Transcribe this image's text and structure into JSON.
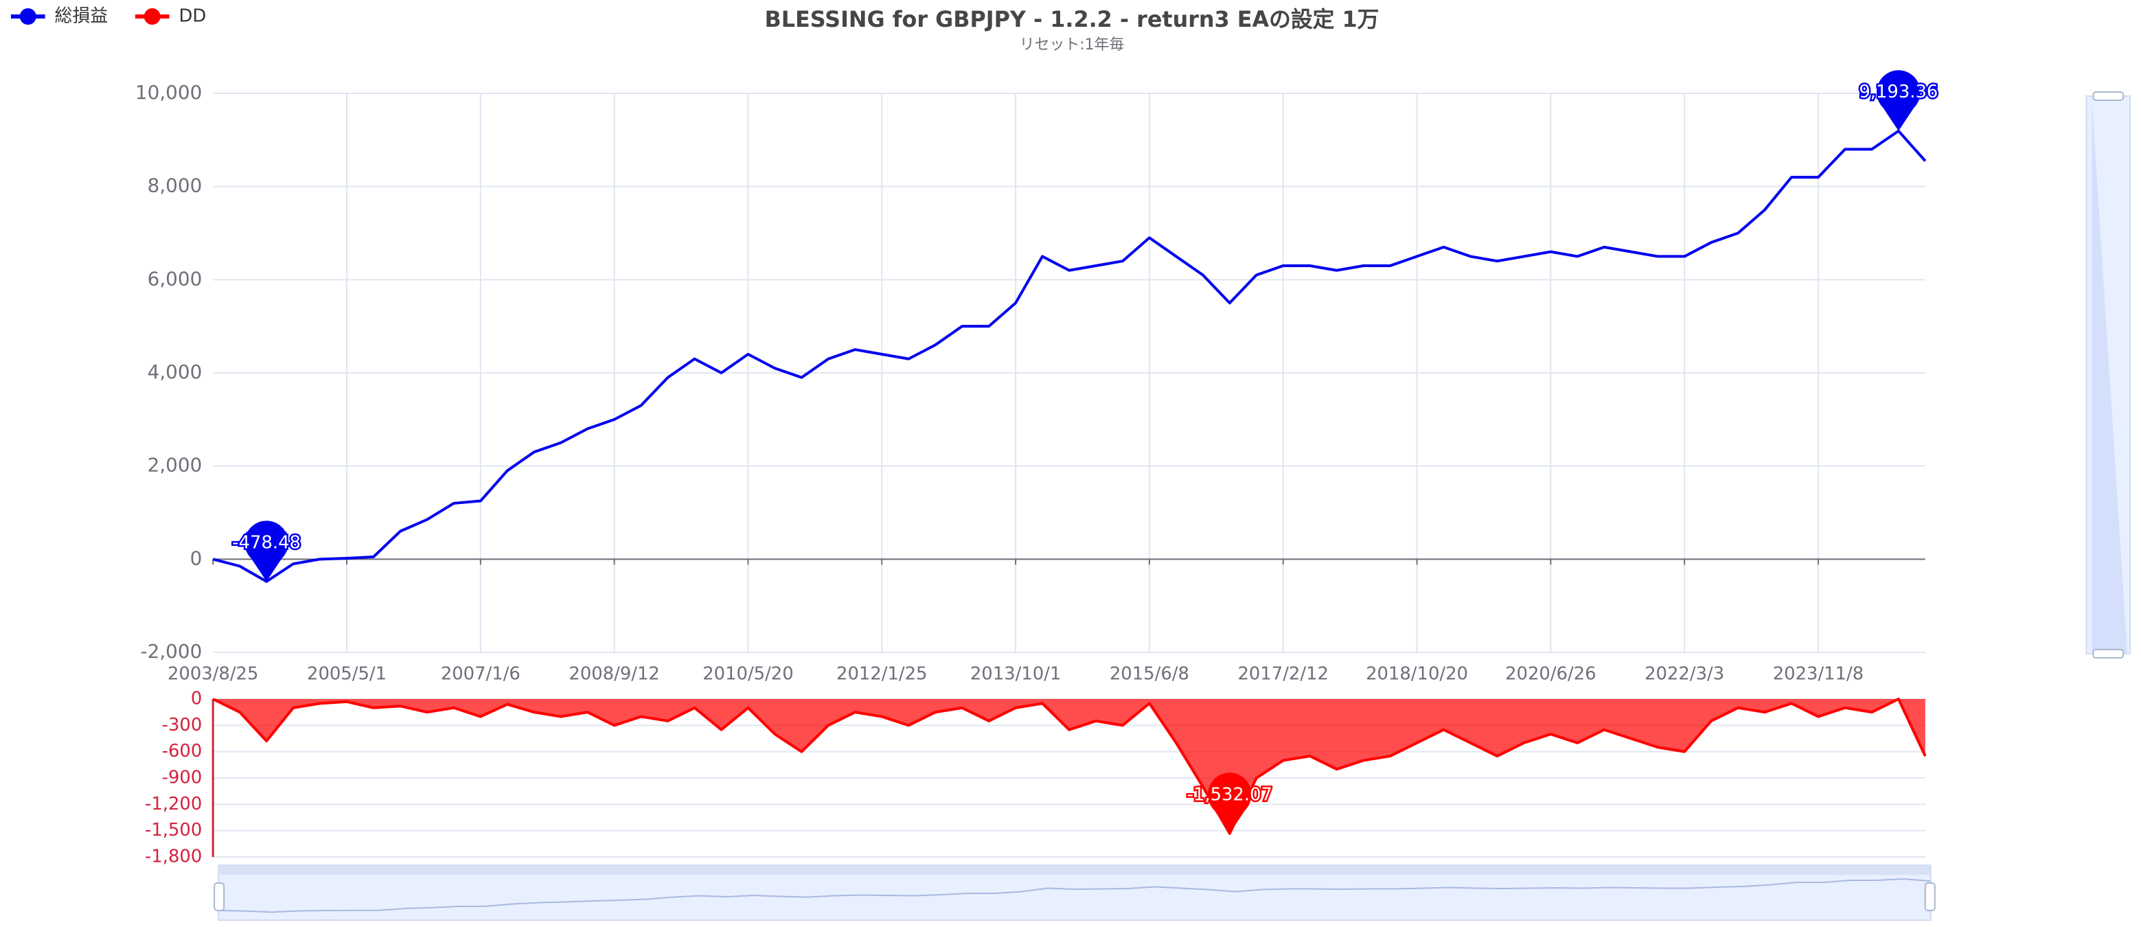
{
  "chart_data": [
    {
      "type": "line",
      "title": "BLESSING for GBPJPY - 1.2.2 - return3 EAの設定 1万",
      "subtitle": "リセット:1年毎",
      "categories": [
        "2003/8/25",
        null,
        null,
        null,
        null,
        "2005/5/1",
        null,
        null,
        null,
        null,
        "2007/1/6",
        null,
        null,
        null,
        null,
        "2008/9/12",
        null,
        null,
        null,
        null,
        "2010/5/20",
        null,
        null,
        null,
        null,
        "2012/1/25",
        null,
        null,
        null,
        null,
        "2013/10/1",
        null,
        null,
        null,
        null,
        "2015/6/8",
        null,
        null,
        null,
        null,
        "2017/2/12",
        null,
        null,
        null,
        null,
        "2018/10/20",
        null,
        null,
        null,
        null,
        "2020/6/26",
        null,
        null,
        null,
        null,
        "2022/3/3",
        null,
        null,
        null,
        null,
        "2023/11/8",
        null,
        null,
        null,
        null
      ],
      "series": [
        {
          "name": "総損益",
          "color": "#0000ee",
          "values": [
            0,
            -150,
            -478.48,
            -100,
            0,
            20,
            50,
            600,
            850,
            1200,
            1250,
            1900,
            2300,
            2500,
            2800,
            3000,
            3300,
            3900,
            4300,
            4000,
            4400,
            4100,
            3900,
            4300,
            4500,
            4400,
            4300,
            4600,
            5000,
            5000,
            5500,
            6500,
            6200,
            6300,
            6400,
            6900,
            6500,
            6100,
            5500,
            6100,
            6300,
            6300,
            6200,
            6300,
            6300,
            6500,
            6700,
            6500,
            6400,
            6500,
            6600,
            6500,
            6700,
            6600,
            6500,
            6500,
            6800,
            7000,
            7500,
            8200,
            8200,
            8800,
            8800,
            9193.36,
            8550
          ],
          "mark_points": [
            {
              "index": 63,
              "value": 9193.36,
              "label": "9,193.36"
            },
            {
              "index": 2,
              "value": -478.48,
              "label": "-478.48"
            }
          ]
        }
      ],
      "ylim": [
        -2000,
        10000
      ],
      "yticks": [
        {
          "value": -2000,
          "label": "-2,000"
        },
        0,
        {
          "value": 2000,
          "label": "2,000"
        },
        {
          "value": 4000,
          "label": "4,000"
        },
        {
          "value": 6000,
          "label": "6,000"
        },
        {
          "value": 8000,
          "label": "8,000"
        },
        {
          "value": 10000,
          "label": "10,000"
        }
      ],
      "grid": true
    },
    {
      "type": "area",
      "series": [
        {
          "name": "DD",
          "color": "#ff0000",
          "values": [
            0,
            -150,
            -478.48,
            -100,
            -50,
            -30,
            -100,
            -80,
            -150,
            -100,
            -200,
            -60,
            -150,
            -200,
            -150,
            -300,
            -200,
            -250,
            -100,
            -350,
            -100,
            -400,
            -600,
            -300,
            -150,
            -200,
            -300,
            -150,
            -100,
            -250,
            -100,
            -50,
            -350,
            -250,
            -300,
            -50,
            -500,
            -1000,
            -1532.07,
            -900,
            -700,
            -650,
            -800,
            -700,
            -650,
            -500,
            -350,
            -500,
            -650,
            -500,
            -400,
            -500,
            -350,
            -450,
            -550,
            -600,
            -250,
            -100,
            -150,
            -50,
            -200,
            -100,
            -150,
            0,
            -650
          ],
          "mark_points": [
            {
              "index": 38,
              "value": -1532.07,
              "label": "-1,532.07"
            }
          ]
        }
      ],
      "ylim": [
        -1800,
        0
      ],
      "yticks": [
        {
          "value": -1800,
          "label": "-1,800"
        },
        {
          "value": -1500,
          "label": "-1,500"
        },
        {
          "value": -1200,
          "label": "-1,200"
        },
        -900,
        -600,
        -300,
        0
      ],
      "grid": true
    }
  ]
}
